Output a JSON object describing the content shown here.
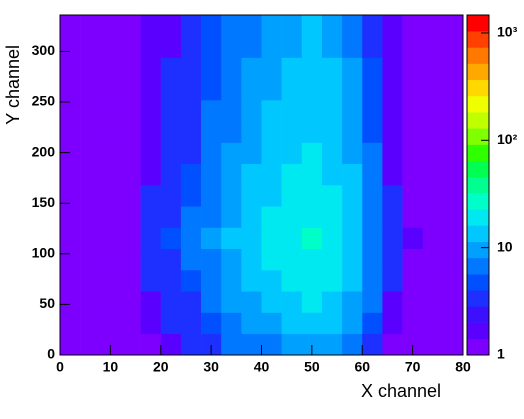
{
  "chart_data": {
    "type": "heatmap",
    "x_label": "X channel",
    "y_label": "Y channel",
    "xlim": [
      0,
      80
    ],
    "ylim": [
      0,
      336
    ],
    "zlim": [
      1,
      1470
    ],
    "zscale": "log",
    "xticks": [
      0,
      10,
      20,
      30,
      40,
      50,
      60,
      70,
      80
    ],
    "yticks": [
      0,
      50,
      100,
      150,
      200,
      250,
      300
    ],
    "zticks": [
      1,
      10,
      {
        "value": 100,
        "label": "10²"
      },
      {
        "value": 1000,
        "label": "10³"
      }
    ],
    "palette": [
      "#7d00ff",
      "#5a00ff",
      "#3c10ff",
      "#1e30ff",
      "#0050ff",
      "#0078ff",
      "#00a0ff",
      "#00c8ff",
      "#00e8f0",
      "#00ffc8",
      "#00ff90",
      "#00ff50",
      "#30ff00",
      "#80ff00",
      "#c0ff00",
      "#f0ff00",
      "#ffd800",
      "#ffa800",
      "#ff7800",
      "#ff4000",
      "#ff0000"
    ],
    "xbins": [
      0,
      4,
      8,
      12,
      16,
      20,
      24,
      28,
      32,
      36,
      40,
      44,
      48,
      52,
      56,
      60,
      64,
      68,
      72,
      76,
      80
    ],
    "ybins": [
      0,
      21,
      42,
      63,
      84,
      105,
      126,
      147,
      168,
      189,
      210,
      231,
      252,
      273,
      294,
      315,
      336
    ],
    "z": [
      [
        1,
        1,
        1,
        1,
        1,
        2,
        3,
        4,
        6,
        7,
        8,
        10,
        11,
        9,
        7,
        4,
        1,
        1,
        1,
        1
      ],
      [
        1,
        1,
        1,
        1,
        2,
        3,
        4,
        5,
        7,
        9,
        11,
        13,
        14,
        12,
        9,
        5,
        2,
        1,
        1,
        1
      ],
      [
        1,
        1,
        1,
        1,
        2,
        3,
        4,
        7,
        9,
        11,
        13,
        15,
        17,
        14,
        11,
        6,
        2,
        1,
        1,
        1
      ],
      [
        1,
        1,
        1,
        1,
        3,
        4,
        5,
        8,
        10,
        13,
        16,
        18,
        20,
        17,
        13,
        7,
        3,
        1,
        1,
        1
      ],
      [
        1,
        1,
        1,
        1,
        3,
        4,
        6,
        8,
        11,
        14,
        17,
        20,
        21,
        18,
        14,
        7,
        3,
        1,
        1,
        1
      ],
      [
        1,
        1,
        1,
        1,
        3,
        5,
        6,
        9,
        12,
        15,
        18,
        21,
        23,
        20,
        15,
        8,
        3,
        2,
        1,
        1
      ],
      [
        1,
        1,
        1,
        1,
        3,
        4,
        6,
        8,
        11,
        14,
        17,
        20,
        21,
        18,
        14,
        7,
        3,
        1,
        1,
        1
      ],
      [
        1,
        1,
        1,
        1,
        3,
        4,
        5,
        8,
        10,
        13,
        16,
        18,
        20,
        17,
        13,
        7,
        3,
        1,
        1,
        1
      ],
      [
        1,
        1,
        1,
        1,
        2,
        4,
        5,
        7,
        10,
        12,
        14,
        17,
        18,
        16,
        12,
        6,
        2,
        1,
        1,
        1
      ],
      [
        1,
        1,
        1,
        1,
        2,
        3,
        4,
        7,
        9,
        11,
        13,
        15,
        17,
        14,
        11,
        6,
        2,
        1,
        1,
        1
      ],
      [
        1,
        1,
        1,
        1,
        2,
        3,
        4,
        6,
        8,
        10,
        12,
        14,
        15,
        13,
        10,
        5,
        2,
        1,
        1,
        1
      ],
      [
        1,
        1,
        1,
        1,
        2,
        3,
        4,
        6,
        8,
        10,
        12,
        14,
        15,
        13,
        10,
        5,
        2,
        1,
        1,
        1
      ],
      [
        1,
        1,
        1,
        1,
        2,
        3,
        4,
        5,
        7,
        9,
        11,
        13,
        14,
        12,
        9,
        5,
        2,
        1,
        1,
        1
      ],
      [
        1,
        1,
        1,
        1,
        2,
        3,
        4,
        5,
        7,
        9,
        11,
        13,
        14,
        12,
        9,
        5,
        2,
        1,
        1,
        1
      ],
      [
        1,
        1,
        1,
        1,
        2,
        2,
        3,
        5,
        6,
        8,
        10,
        11,
        12,
        10,
        8,
        4,
        2,
        1,
        1,
        1
      ],
      [
        1,
        1,
        1,
        1,
        2,
        2,
        3,
        5,
        6,
        8,
        10,
        11,
        12,
        10,
        8,
        4,
        2,
        1,
        1,
        1
      ]
    ]
  }
}
